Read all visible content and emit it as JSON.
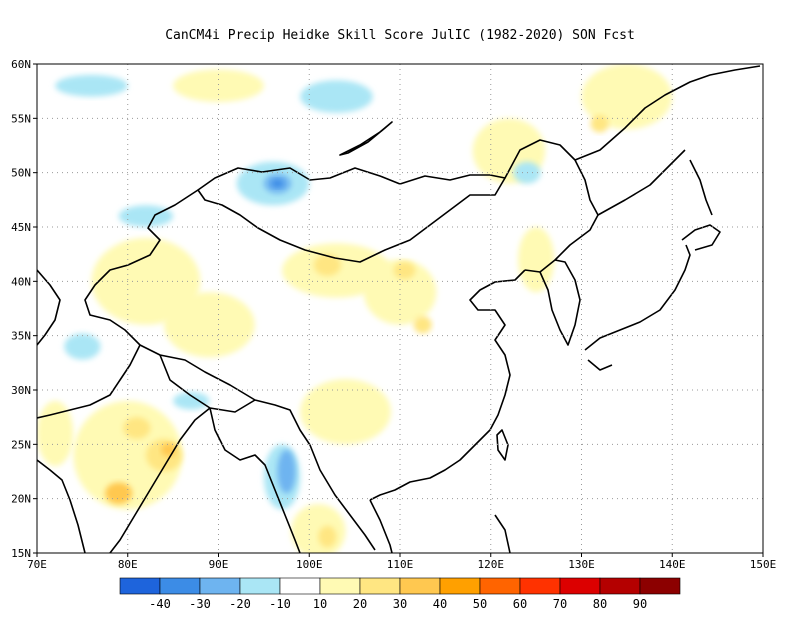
{
  "title": "CanCM4i Precip Heidke Skill Score JulIC (1982-2020) SON Fcst",
  "map": {
    "lon_range": [
      70,
      150
    ],
    "lat_range": [
      15,
      60
    ],
    "lon_ticks": [
      {
        "value": 70,
        "label": "70E"
      },
      {
        "value": 80,
        "label": "80E"
      },
      {
        "value": 90,
        "label": "90E"
      },
      {
        "value": 100,
        "label": "100E"
      },
      {
        "value": 110,
        "label": "110E"
      },
      {
        "value": 120,
        "label": "120E"
      },
      {
        "value": 130,
        "label": "130E"
      },
      {
        "value": 140,
        "label": "140E"
      },
      {
        "value": 150,
        "label": "150E"
      }
    ],
    "lat_ticks": [
      {
        "value": 15,
        "label": "15N"
      },
      {
        "value": 20,
        "label": "20N"
      },
      {
        "value": 25,
        "label": "25N"
      },
      {
        "value": 30,
        "label": "30N"
      },
      {
        "value": 35,
        "label": "35N"
      },
      {
        "value": 40,
        "label": "40N"
      },
      {
        "value": 45,
        "label": "45N"
      },
      {
        "value": 50,
        "label": "50N"
      },
      {
        "value": 55,
        "label": "55N"
      },
      {
        "value": 60,
        "label": "60N"
      }
    ],
    "grid": true
  },
  "colorbar": {
    "colors": [
      "#1e64dc",
      "#3c8ce6",
      "#6eb4f0",
      "#aae6f5",
      "#ffffff",
      "#fffab4",
      "#ffe682",
      "#ffc850",
      "#ffa000",
      "#ff6400",
      "#ff3200",
      "#dc0000",
      "#b40000",
      "#8c0000"
    ],
    "labels": [
      "-40",
      "-30",
      "-20",
      "-10",
      "10",
      "20",
      "30",
      "40",
      "50",
      "60",
      "70",
      "80",
      "90"
    ]
  },
  "features": [
    {
      "name": "xinjiang-yellow",
      "lon": 82,
      "lat": 40,
      "rlon": 6,
      "rlat": 4,
      "color": "#fffab4"
    },
    {
      "name": "tibet-yellow-1",
      "lon": 89,
      "lat": 36,
      "rlon": 5,
      "rlat": 3,
      "color": "#fffab4"
    },
    {
      "name": "north-china-yellow",
      "lon": 103,
      "lat": 41,
      "rlon": 6,
      "rlat": 2.5,
      "color": "#fffab4"
    },
    {
      "name": "north-china-orange",
      "lon": 102,
      "lat": 41.5,
      "rlon": 1.5,
      "rlat": 1,
      "color": "#ffe682"
    },
    {
      "name": "loess-yellow",
      "lon": 110,
      "lat": 39,
      "rlon": 4,
      "rlat": 3,
      "color": "#fffab4"
    },
    {
      "name": "shanxi-orange",
      "lon": 110.5,
      "lat": 41,
      "rlon": 1.2,
      "rlat": 0.8,
      "color": "#ffe682"
    },
    {
      "name": "central-orange",
      "lon": 112.5,
      "lat": 36,
      "rlon": 1,
      "rlat": 0.8,
      "color": "#ffe682"
    },
    {
      "name": "india-yellow",
      "lon": 80,
      "lat": 24,
      "rlon": 6,
      "rlat": 5,
      "color": "#fffab4"
    },
    {
      "name": "india-orange-1",
      "lon": 81,
      "lat": 26.5,
      "rlon": 1.5,
      "rlat": 1,
      "color": "#ffe682"
    },
    {
      "name": "india-orange-2",
      "lon": 84,
      "lat": 24,
      "rlon": 2,
      "rlat": 1.5,
      "color": "#ffe682"
    },
    {
      "name": "india-orange-3",
      "lon": 79,
      "lat": 20.5,
      "rlon": 1.5,
      "rlat": 1,
      "color": "#ffc850"
    },
    {
      "name": "india-orange-4",
      "lon": 84.5,
      "lat": 24.5,
      "rlon": 0.8,
      "rlat": 0.6,
      "color": "#ffc850"
    },
    {
      "name": "west-india-yellow",
      "lon": 72,
      "lat": 26,
      "rlon": 2,
      "rlat": 3,
      "color": "#fffab4"
    },
    {
      "name": "sw-china-yellow",
      "lon": 104,
      "lat": 28,
      "rlon": 5,
      "rlat": 3,
      "color": "#fffab4"
    },
    {
      "name": "siberia-yellow",
      "lon": 122,
      "lat": 52,
      "rlon": 4,
      "rlat": 3,
      "color": "#fffab4"
    },
    {
      "name": "kamchatka-yellow",
      "lon": 135,
      "lat": 57,
      "rlon": 5,
      "rlat": 3,
      "color": "#fffab4"
    },
    {
      "name": "kamchatka-orange",
      "lon": 132,
      "lat": 54.5,
      "rlon": 1,
      "rlat": 0.8,
      "color": "#ffe682"
    },
    {
      "name": "north-yellow",
      "lon": 90,
      "lat": 58,
      "rlon": 5,
      "rlat": 1.5,
      "color": "#fffab4"
    },
    {
      "name": "korea-yellow",
      "lon": 125,
      "lat": 42,
      "rlon": 2,
      "rlat": 3,
      "color": "#fffab4"
    },
    {
      "name": "indochina-yellow",
      "lon": 101,
      "lat": 17,
      "rlon": 3,
      "rlat": 2.5,
      "color": "#fffab4"
    },
    {
      "name": "indochina-orange",
      "lon": 102,
      "lat": 16.5,
      "rlon": 1,
      "rlat": 1,
      "color": "#ffe682"
    },
    {
      "name": "mongolia-blue",
      "lon": 96,
      "lat": 49,
      "rlon": 4,
      "rlat": 2,
      "color": "#aae6f5"
    },
    {
      "name": "mongolia-blue-2",
      "lon": 96.5,
      "lat": 49,
      "rlon": 1.5,
      "rlat": 0.9,
      "color": "#6eb4f0"
    },
    {
      "name": "mongolia-blue-3",
      "lon": 96.5,
      "lat": 49,
      "rlon": 0.7,
      "rlat": 0.4,
      "color": "#3c8ce6"
    },
    {
      "name": "myanmar-blue",
      "lon": 97,
      "lat": 22,
      "rlon": 2,
      "rlat": 3,
      "color": "#aae6f5"
    },
    {
      "name": "myanmar-blue-2",
      "lon": 97.5,
      "lat": 22.5,
      "rlon": 1,
      "rlat": 2,
      "color": "#6eb4f0"
    },
    {
      "name": "kazakh-blue",
      "lon": 82,
      "lat": 46,
      "rlon": 3,
      "rlat": 1,
      "color": "#aae6f5"
    },
    {
      "name": "west-blue",
      "lon": 75,
      "lat": 34,
      "rlon": 2,
      "rlat": 1.2,
      "color": "#aae6f5"
    },
    {
      "name": "siberia-blue",
      "lon": 103,
      "lat": 57,
      "rlon": 4,
      "rlat": 1.5,
      "color": "#aae6f5"
    },
    {
      "name": "arctic-blue",
      "lon": 76,
      "lat": 58,
      "rlon": 4,
      "rlat": 1,
      "color": "#aae6f5"
    },
    {
      "name": "ne-china-blue",
      "lon": 124,
      "lat": 50,
      "rlon": 1.5,
      "rlat": 1,
      "color": "#aae6f5"
    },
    {
      "name": "tibet-blue",
      "lon": 87,
      "lat": 29,
      "rlon": 2,
      "rlat": 0.8,
      "color": "#aae6f5"
    }
  ]
}
